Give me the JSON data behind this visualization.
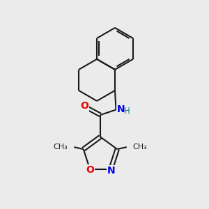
{
  "bg_color": "#ebebeb",
  "bond_color": "#1a1a1a",
  "N_color": "#0000ee",
  "O_color": "#ee0000",
  "H_color": "#008080",
  "line_width": 1.5,
  "font_size": 10,
  "fig_size": [
    3.0,
    3.0
  ],
  "dpi": 100,
  "xlim": [
    0,
    10
  ],
  "ylim": [
    0,
    10
  ]
}
